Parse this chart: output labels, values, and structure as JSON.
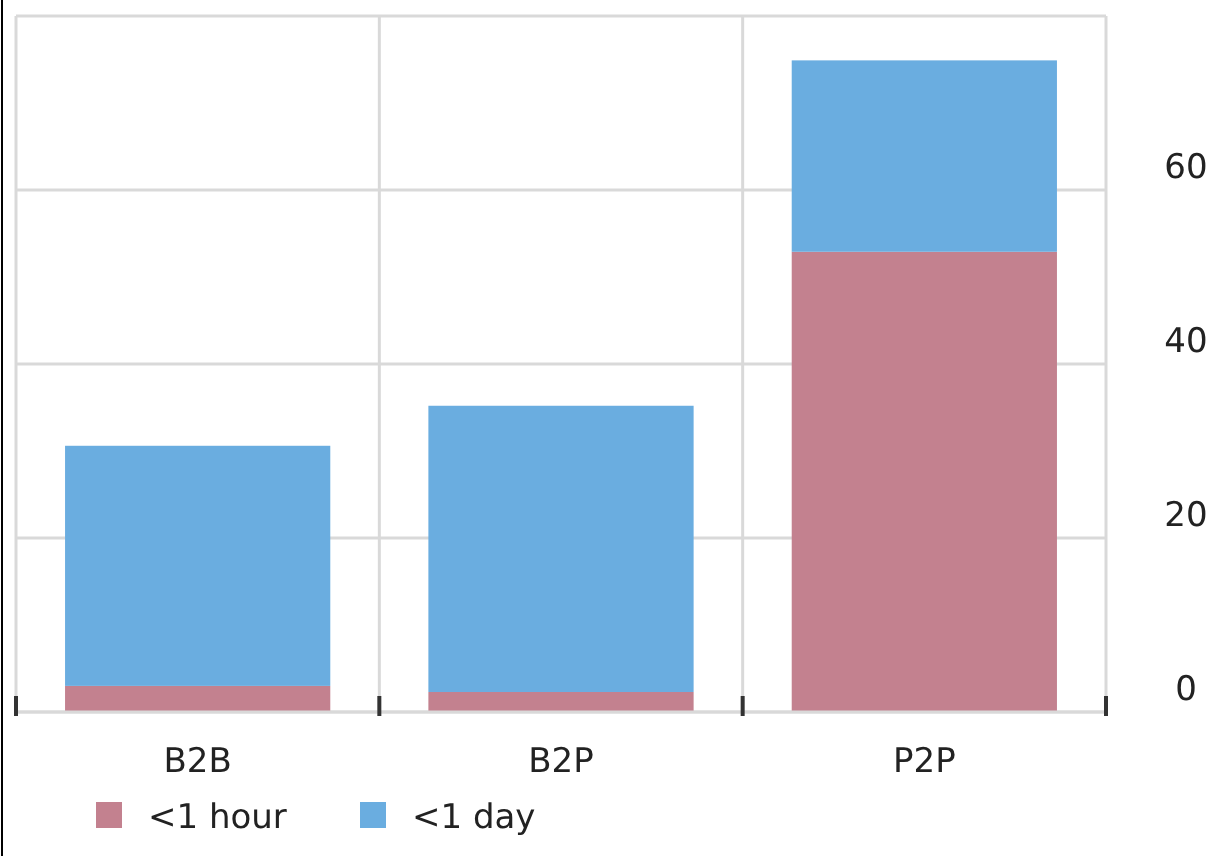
{
  "chart_data": {
    "type": "bar",
    "stacked": true,
    "categories": [
      "B2B",
      "B2P",
      "P2P"
    ],
    "series": [
      {
        "name": "<1 hour",
        "color": "#c3818f",
        "values": [
          3,
          2.3,
          52.9
        ]
      },
      {
        "name": "<1 day",
        "color": "#6aade0",
        "values": [
          27.6,
          32.9,
          22
        ]
      }
    ],
    "ylim": [
      0,
      80
    ],
    "yticks": [
      0,
      20,
      40,
      60
    ],
    "grid": true,
    "legend": "bottom"
  }
}
